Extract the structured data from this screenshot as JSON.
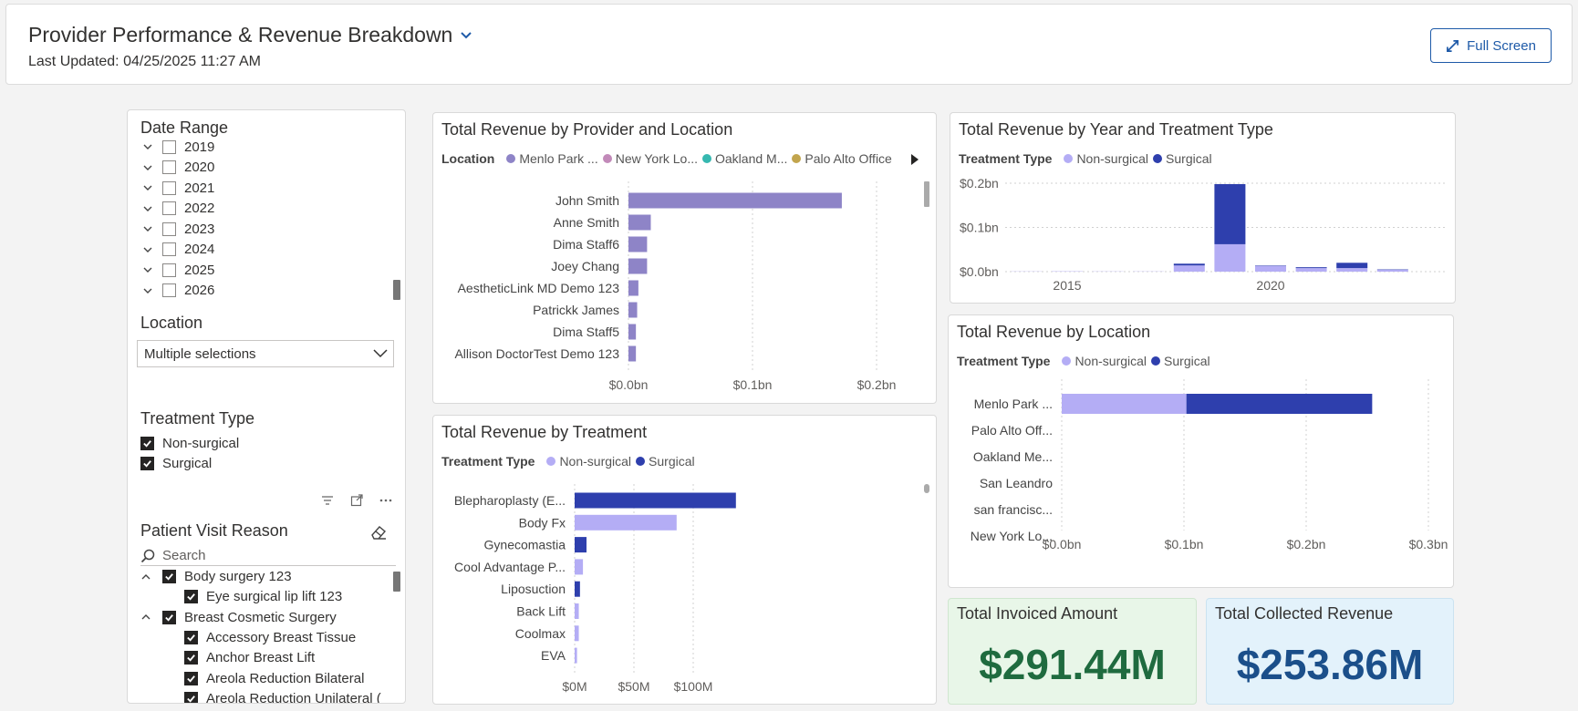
{
  "header": {
    "title": "Provider Performance & Revenue Breakdown",
    "last_updated": "Last Updated: 04/25/2025 11:27 AM",
    "full_screen_label": "Full Screen"
  },
  "slicers": {
    "date_range": {
      "title": "Date Range",
      "years": [
        "2019",
        "2020",
        "2021",
        "2022",
        "2023",
        "2024",
        "2025",
        "2026"
      ]
    },
    "location": {
      "title": "Location",
      "selected": "Multiple selections"
    },
    "treatment_type": {
      "title": "Treatment Type",
      "items": [
        {
          "label": "Non-surgical",
          "checked": true
        },
        {
          "label": "Surgical",
          "checked": true
        }
      ]
    },
    "patient_visit_reason": {
      "title": "Patient Visit Reason",
      "search_placeholder": "Search",
      "items": [
        {
          "label": "Body surgery 123",
          "level": 0,
          "checked": true
        },
        {
          "label": "Eye surgical lip lift 123",
          "level": 1,
          "checked": true
        },
        {
          "label": "Breast Cosmetic Surgery",
          "level": 0,
          "checked": true
        },
        {
          "label": "Accessory Breast Tissue",
          "level": 1,
          "checked": true
        },
        {
          "label": "Anchor Breast Lift",
          "level": 1,
          "checked": true
        },
        {
          "label": "Areola Reduction Bilateral",
          "level": 1,
          "checked": true
        },
        {
          "label": "Areola Reduction Unilateral (",
          "level": 1,
          "checked": true
        }
      ]
    }
  },
  "colors": {
    "location_menlo": "#8e84c7",
    "location_newyork": "#c28ab9",
    "location_oakland": "#36b8b0",
    "location_paloalto": "#c2a54d",
    "non_surgical": "#b4adf5",
    "surgical": "#2e3fad",
    "kpi_invoiced_bg": "#e8f6e8",
    "kpi_invoiced_text": "#1f6b3f",
    "kpi_collected_bg": "#e3f2fb",
    "kpi_collected_text": "#1b4f8a"
  },
  "charts": {
    "provider": {
      "title": "Total Revenue by Provider and Location",
      "legend_title": "Location",
      "legend": [
        "Menlo Park ...",
        "New York Lo...",
        "Oakland M...",
        "Palo Alto Office"
      ]
    },
    "year_treatment": {
      "title": "Total Revenue by Year and Treatment Type",
      "legend_title": "Treatment Type",
      "legend": [
        "Non-surgical",
        "Surgical"
      ]
    },
    "treatment": {
      "title": "Total Revenue by Treatment",
      "legend_title": "Treatment Type",
      "legend": [
        "Non-surgical",
        "Surgical"
      ]
    },
    "location": {
      "title": "Total Revenue by Location",
      "legend_title": "Treatment Type",
      "legend": [
        "Non-surgical",
        "Surgical"
      ]
    }
  },
  "kpis": {
    "invoiced": {
      "title": "Total Invoiced Amount",
      "value": "$291.44M"
    },
    "collected": {
      "title": "Total Collected Revenue",
      "value": "$253.86M"
    }
  },
  "chart_data": [
    {
      "type": "bar",
      "orientation": "horizontal",
      "title": "Total Revenue by Provider and Location",
      "categories": [
        "John Smith",
        "Anne Smith",
        "Dima Staff6",
        "Joey Chang",
        "AestheticLink MD Demo 123",
        "Patrickk James",
        "Dima Staff5",
        "Allison DoctorTest Demo 123"
      ],
      "series": [
        {
          "name": "Menlo Park ...",
          "values": [
            0.172,
            0.018,
            0.015,
            0.015,
            0.008,
            0.007,
            0.006,
            0.006
          ]
        }
      ],
      "xlim": [
        0,
        0.2
      ],
      "xticks": [
        "$0.0bn",
        "$0.1bn",
        "$0.2bn"
      ],
      "unit": "bn"
    },
    {
      "type": "bar",
      "stacked": true,
      "title": "Total Revenue by Year and Treatment Type",
      "x": [
        2014,
        2015,
        2016,
        2017,
        2018,
        2019,
        2020,
        2021,
        2022,
        2023
      ],
      "series": [
        {
          "name": "Non-surgical",
          "values": [
            0.0005,
            0.0008,
            0.0005,
            0.0005,
            0.014,
            0.062,
            0.013,
            0.008,
            0.008,
            0.004
          ]
        },
        {
          "name": "Surgical",
          "values": [
            0,
            0,
            0,
            0,
            0.004,
            0.136,
            0.001,
            0.002,
            0.012,
            0.001
          ]
        }
      ],
      "ylim": [
        0,
        0.2
      ],
      "yticks": [
        "$0.0bn",
        "$0.1bn",
        "$0.2bn"
      ],
      "xticks": [
        "2015",
        "2020"
      ],
      "unit": "bn"
    },
    {
      "type": "bar",
      "orientation": "horizontal",
      "title": "Total Revenue by Treatment",
      "categories": [
        "Blepharoplasty (E...",
        "Body Fx",
        "Gynecomastia",
        "Cool Advantage P...",
        "Liposuction",
        "Back Lift",
        "Coolmax",
        "EVA"
      ],
      "series": [
        {
          "name": "Non-surgical",
          "values": [
            0,
            86,
            0,
            7,
            0,
            3.5,
            3.5,
            2
          ]
        },
        {
          "name": "Surgical",
          "values": [
            136,
            0,
            10,
            0,
            4.5,
            0,
            0,
            0
          ]
        }
      ],
      "xlim": [
        0,
        140
      ],
      "xticks": [
        "$0M",
        "$50M",
        "$100M"
      ],
      "unit": "M"
    },
    {
      "type": "bar",
      "orientation": "horizontal",
      "stacked": true,
      "title": "Total Revenue by Location",
      "categories": [
        "Menlo Park ...",
        "Palo Alto Off...",
        "Oakland Me...",
        "San Leandro",
        "san francisc...",
        "New York Lo..."
      ],
      "series": [
        {
          "name": "Non-surgical",
          "values": [
            0.102,
            0,
            0,
            0,
            0,
            0
          ]
        },
        {
          "name": "Surgical",
          "values": [
            0.152,
            0,
            0,
            0,
            0,
            0
          ]
        }
      ],
      "xlim": [
        0,
        0.3
      ],
      "xticks": [
        "$0.0bn",
        "$0.1bn",
        "$0.2bn",
        "$0.3bn"
      ],
      "unit": "bn"
    }
  ]
}
